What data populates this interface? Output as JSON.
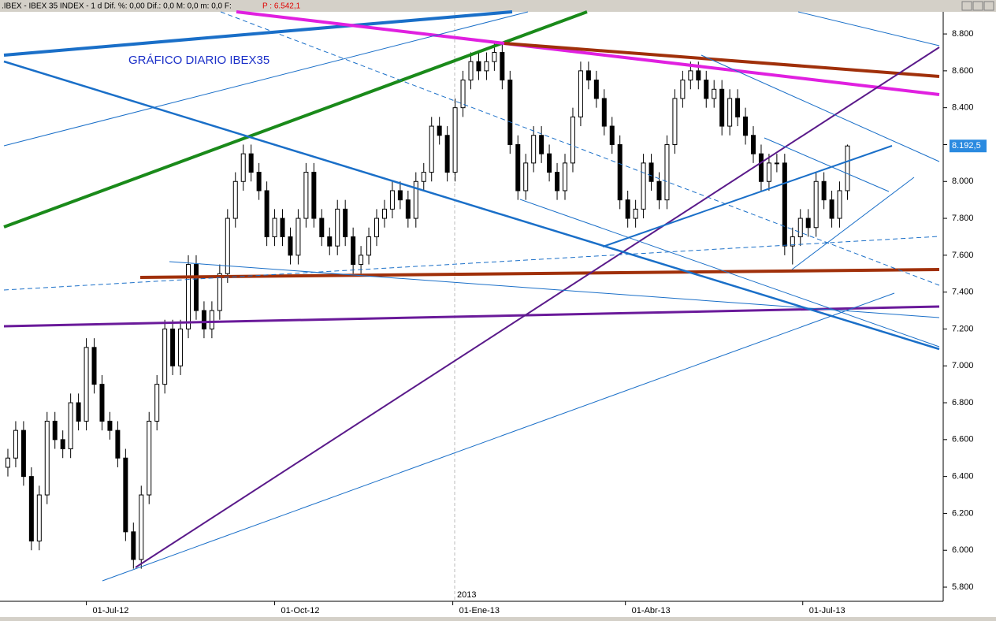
{
  "header": {
    "text": ".IBEX - IBEX 35 INDEX - 1 d Dif. %: 0,00 Dif.: 0,0 M: 0,0 m: 0,0 F:",
    "price": "P : 6.542,1"
  },
  "chart_data": {
    "type": "candlestick",
    "title": "GRÁFICO DIARIO IBEX35",
    "year_label": "2013",
    "last_label": "8.192,5",
    "up_color": "#ffffff",
    "down_color": "#000000",
    "ylim": [
      5736,
      8920
    ],
    "yticks": [
      {
        "value": 5800,
        "label": "5.800"
      },
      {
        "value": 6000,
        "label": "6.000"
      },
      {
        "value": 6200,
        "label": "6.200"
      },
      {
        "value": 6400,
        "label": "6.400"
      },
      {
        "value": 6600,
        "label": "6.600"
      },
      {
        "value": 6800,
        "label": "6.800"
      },
      {
        "value": 7000,
        "label": "7.000"
      },
      {
        "value": 7200,
        "label": "7.200"
      },
      {
        "value": 7400,
        "label": "7.400"
      },
      {
        "value": 7600,
        "label": "7.600"
      },
      {
        "value": 7800,
        "label": "7.800"
      },
      {
        "value": 8000,
        "label": "8.000"
      },
      {
        "value": 8200,
        "label": "8.200"
      },
      {
        "value": 8400,
        "label": "8.400"
      },
      {
        "value": 8600,
        "label": "8.600"
      },
      {
        "value": 8800,
        "label": "8.800"
      }
    ],
    "xlim": [
      -0.5,
      119
    ],
    "xticks": [
      {
        "value": 10,
        "label": "01-Jul-12"
      },
      {
        "value": 34,
        "label": "01-Oct-12"
      },
      {
        "value": 56.7,
        "label": "01-Ene-13"
      },
      {
        "value": 78.7,
        "label": "01-Abr-13"
      },
      {
        "value": 101.3,
        "label": "01-Jul-13"
      }
    ],
    "candles": [
      [
        6450,
        6550,
        6400,
        6500
      ],
      [
        6500,
        6700,
        6450,
        6650
      ],
      [
        6650,
        6700,
        6350,
        6400
      ],
      [
        6400,
        6450,
        6000,
        6050
      ],
      [
        6050,
        6350,
        6000,
        6300
      ],
      [
        6300,
        6750,
        6250,
        6700
      ],
      [
        6700,
        6750,
        6550,
        6600
      ],
      [
        6600,
        6650,
        6500,
        6550
      ],
      [
        6550,
        6850,
        6500,
        6800
      ],
      [
        6800,
        6850,
        6650,
        6700
      ],
      [
        6700,
        7150,
        6650,
        7100
      ],
      [
        7100,
        7150,
        6850,
        6900
      ],
      [
        6900,
        6950,
        6650,
        6700
      ],
      [
        6700,
        6750,
        6600,
        6650
      ],
      [
        6650,
        6700,
        6450,
        6500
      ],
      [
        6500,
        6550,
        6050,
        6100
      ],
      [
        6100,
        6150,
        5900,
        5950
      ],
      [
        5950,
        6350,
        5900,
        6300
      ],
      [
        6300,
        6750,
        6250,
        6700
      ],
      [
        6700,
        6950,
        6650,
        6900
      ],
      [
        6900,
        7250,
        6850,
        7200
      ],
      [
        7200,
        7250,
        6950,
        7000
      ],
      [
        7000,
        7250,
        6950,
        7200
      ],
      [
        7200,
        7600,
        7150,
        7550
      ],
      [
        7550,
        7600,
        7250,
        7300
      ],
      [
        7300,
        7350,
        7150,
        7200
      ],
      [
        7200,
        7350,
        7150,
        7300
      ],
      [
        7300,
        7550,
        7250,
        7500
      ],
      [
        7500,
        7850,
        7450,
        7800
      ],
      [
        7800,
        8050,
        7750,
        8000
      ],
      [
        8000,
        8200,
        7950,
        8150
      ],
      [
        8150,
        8200,
        8000,
        8050
      ],
      [
        8050,
        8100,
        7900,
        7950
      ],
      [
        7950,
        8000,
        7650,
        7700
      ],
      [
        7700,
        7850,
        7650,
        7800
      ],
      [
        7800,
        7850,
        7650,
        7700
      ],
      [
        7700,
        7750,
        7550,
        7600
      ],
      [
        7600,
        7850,
        7550,
        7800
      ],
      [
        7800,
        8100,
        7750,
        8050
      ],
      [
        8050,
        8100,
        7750,
        7800
      ],
      [
        7800,
        7850,
        7650,
        7700
      ],
      [
        7700,
        7750,
        7600,
        7650
      ],
      [
        7650,
        7900,
        7600,
        7850
      ],
      [
        7850,
        7900,
        7650,
        7700
      ],
      [
        7700,
        7750,
        7500,
        7550
      ],
      [
        7550,
        7650,
        7500,
        7600
      ],
      [
        7600,
        7750,
        7550,
        7700
      ],
      [
        7700,
        7850,
        7650,
        7800
      ],
      [
        7800,
        7900,
        7750,
        7850
      ],
      [
        7850,
        8000,
        7800,
        7950
      ],
      [
        7950,
        8000,
        7850,
        7900
      ],
      [
        7900,
        7950,
        7750,
        7800
      ],
      [
        7800,
        8050,
        7750,
        8000
      ],
      [
        8000,
        8100,
        7950,
        8050
      ],
      [
        8050,
        8350,
        8000,
        8300
      ],
      [
        8300,
        8350,
        8200,
        8250
      ],
      [
        8250,
        8300,
        8000,
        8050
      ],
      [
        8050,
        8450,
        8000,
        8400
      ],
      [
        8400,
        8600,
        8350,
        8550
      ],
      [
        8550,
        8700,
        8500,
        8650
      ],
      [
        8650,
        8700,
        8550,
        8600
      ],
      [
        8600,
        8700,
        8550,
        8650
      ],
      [
        8650,
        8750,
        8600,
        8700
      ],
      [
        8700,
        8750,
        8500,
        8550
      ],
      [
        8550,
        8600,
        8150,
        8200
      ],
      [
        8200,
        8250,
        7900,
        7950
      ],
      [
        7950,
        8150,
        7900,
        8100
      ],
      [
        8100,
        8300,
        8050,
        8250
      ],
      [
        8250,
        8300,
        8100,
        8150
      ],
      [
        8150,
        8200,
        8000,
        8050
      ],
      [
        8050,
        8100,
        7900,
        7950
      ],
      [
        7950,
        8150,
        7900,
        8100
      ],
      [
        8100,
        8400,
        8050,
        8350
      ],
      [
        8350,
        8650,
        8300,
        8600
      ],
      [
        8600,
        8650,
        8500,
        8550
      ],
      [
        8550,
        8600,
        8400,
        8450
      ],
      [
        8450,
        8500,
        8250,
        8300
      ],
      [
        8300,
        8350,
        8150,
        8200
      ],
      [
        8200,
        8250,
        7850,
        7900
      ],
      [
        7900,
        7950,
        7750,
        7800
      ],
      [
        7800,
        7900,
        7750,
        7850
      ],
      [
        7850,
        8150,
        7800,
        8100
      ],
      [
        8100,
        8150,
        7950,
        8000
      ],
      [
        8000,
        8050,
        7850,
        7900
      ],
      [
        7900,
        8250,
        7850,
        8200
      ],
      [
        8200,
        8500,
        8150,
        8450
      ],
      [
        8450,
        8600,
        8400,
        8550
      ],
      [
        8550,
        8650,
        8500,
        8600
      ],
      [
        8600,
        8650,
        8500,
        8550
      ],
      [
        8550,
        8600,
        8400,
        8450
      ],
      [
        8450,
        8550,
        8400,
        8500
      ],
      [
        8500,
        8550,
        8250,
        8300
      ],
      [
        8300,
        8500,
        8250,
        8450
      ],
      [
        8450,
        8500,
        8300,
        8350
      ],
      [
        8350,
        8400,
        8200,
        8250
      ],
      [
        8250,
        8300,
        8100,
        8150
      ],
      [
        8150,
        8200,
        7950,
        8000
      ],
      [
        8000,
        8150,
        7950,
        8100
      ],
      [
        8100,
        8150,
        8050,
        8100
      ],
      [
        8100,
        8150,
        7600,
        7650
      ],
      [
        7650,
        7750,
        7550,
        7700
      ],
      [
        7700,
        7850,
        7650,
        7800
      ],
      [
        7800,
        7850,
        7700,
        7750
      ],
      [
        7750,
        8050,
        7700,
        8000
      ],
      [
        8000,
        8050,
        7850,
        7900
      ],
      [
        7900,
        7950,
        7750,
        7800
      ],
      [
        7800,
        8000,
        7750,
        7950
      ],
      [
        7950,
        8200,
        7900,
        8192.5
      ]
    ]
  }
}
